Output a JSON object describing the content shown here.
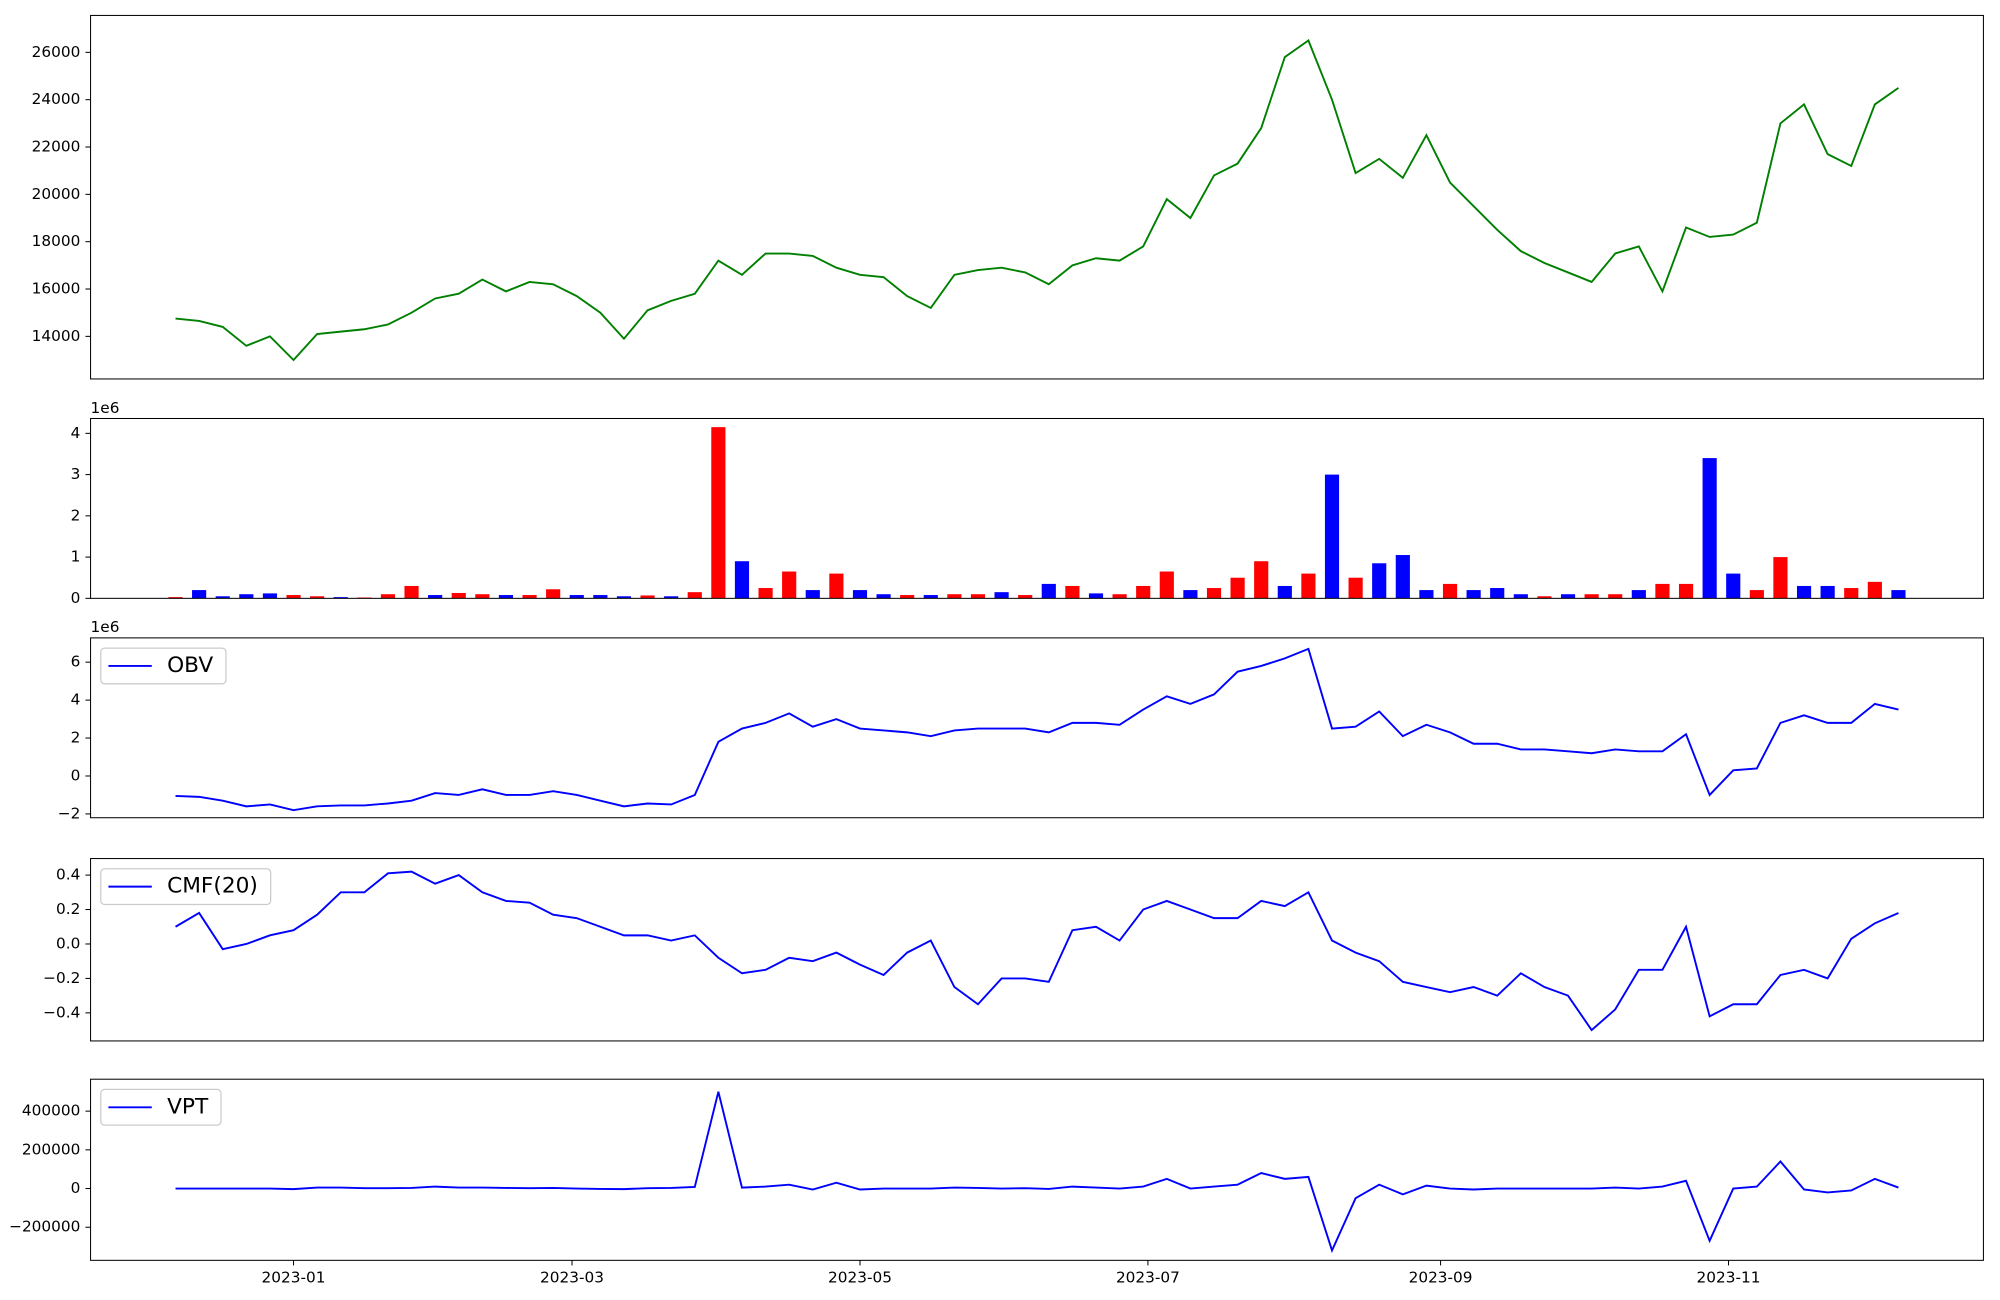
{
  "chart_data": [
    {
      "type": "line",
      "color": "green",
      "x": [
        -25,
        -20,
        -15,
        -10,
        -5,
        0,
        5,
        10,
        15,
        20,
        25,
        30,
        35,
        40,
        45,
        50,
        55,
        60,
        65,
        70,
        75,
        80,
        85,
        90,
        95,
        100,
        105,
        110,
        115,
        120,
        125,
        130,
        135,
        140,
        145,
        150,
        155,
        160,
        165,
        170,
        175,
        180,
        185,
        190,
        195,
        200,
        205,
        210,
        215,
        220,
        225,
        230,
        235,
        240,
        245,
        250,
        255,
        260,
        265,
        270,
        275,
        280,
        285,
        290,
        295,
        300,
        305,
        310,
        315,
        320,
        325,
        330,
        335,
        340
      ],
      "values": [
        14750,
        14650,
        14400,
        13600,
        14000,
        13000,
        14100,
        14200,
        14300,
        14500,
        15000,
        15600,
        15800,
        16400,
        15900,
        16300,
        16200,
        15700,
        15000,
        13900,
        15100,
        15500,
        15800,
        17200,
        16600,
        17500,
        17500,
        17400,
        16900,
        16600,
        16500,
        15700,
        15200,
        16600,
        16800,
        16900,
        16700,
        16200,
        17000,
        17300,
        17200,
        17800,
        19800,
        19000,
        20800,
        21300,
        22800,
        25800,
        26500,
        24000,
        20900,
        21500,
        20700,
        22500,
        20500,
        19500,
        18500,
        17600,
        17100,
        16700,
        16300,
        17500,
        17800,
        15900,
        18600,
        18200,
        18300,
        18800,
        23000,
        23800,
        21700,
        21200,
        23800,
        24500
      ],
      "xlim": [
        -43,
        358
      ],
      "ylim": [
        12200,
        27560
      ],
      "yticks": [
        14000,
        16000,
        18000,
        20000,
        22000,
        24000,
        26000
      ]
    },
    {
      "type": "bar",
      "offset_label": "1e6",
      "x": [
        -25,
        -20,
        -15,
        -10,
        -5,
        0,
        5,
        10,
        15,
        20,
        25,
        30,
        35,
        40,
        45,
        50,
        55,
        60,
        65,
        70,
        75,
        80,
        85,
        90,
        95,
        100,
        105,
        110,
        115,
        120,
        125,
        130,
        135,
        140,
        145,
        150,
        155,
        160,
        165,
        170,
        175,
        180,
        185,
        190,
        195,
        200,
        205,
        210,
        215,
        220,
        225,
        230,
        235,
        240,
        245,
        250,
        255,
        260,
        265,
        270,
        275,
        280,
        285,
        290,
        295,
        300,
        305,
        310,
        315,
        320,
        325,
        330,
        335,
        340
      ],
      "values": [
        30000,
        200000,
        50000,
        100000,
        120000,
        80000,
        50000,
        30000,
        20000,
        100000,
        300000,
        80000,
        130000,
        100000,
        80000,
        80000,
        220000,
        80000,
        80000,
        50000,
        70000,
        50000,
        150000,
        4150000,
        900000,
        250000,
        650000,
        200000,
        600000,
        200000,
        100000,
        80000,
        80000,
        100000,
        100000,
        150000,
        80000,
        350000,
        300000,
        120000,
        100000,
        300000,
        650000,
        200000,
        250000,
        500000,
        900000,
        300000,
        600000,
        3000000,
        500000,
        850000,
        1050000,
        200000,
        350000,
        200000,
        250000,
        100000,
        50000,
        100000,
        100000,
        100000,
        200000,
        350000,
        350000,
        3400000,
        600000,
        200000,
        1000000,
        300000,
        300000,
        250000,
        400000,
        200000
      ],
      "colors": [
        "red",
        "blue",
        "blue",
        "blue",
        "blue",
        "red",
        "red",
        "blue",
        "red",
        "red",
        "red",
        "blue",
        "red",
        "red",
        "blue",
        "red",
        "red",
        "blue",
        "blue",
        "blue",
        "red",
        "blue",
        "red",
        "red",
        "blue",
        "red",
        "red",
        "blue",
        "red",
        "blue",
        "blue",
        "red",
        "blue",
        "red",
        "red",
        "blue",
        "red",
        "blue",
        "red",
        "blue",
        "red",
        "red",
        "red",
        "blue",
        "red",
        "red",
        "red",
        "blue",
        "red",
        "blue",
        "red",
        "blue",
        "blue",
        "blue",
        "red",
        "blue",
        "blue",
        "blue",
        "red",
        "blue",
        "red",
        "red",
        "blue",
        "red",
        "red",
        "blue",
        "blue",
        "red",
        "red",
        "blue",
        "blue",
        "red",
        "red",
        "blue"
      ],
      "xlim": [
        -43,
        358
      ],
      "ylim": [
        0,
        4360000
      ],
      "yticks": [
        0,
        {
          "value": 1000000,
          "label": "1"
        },
        {
          "value": 2000000,
          "label": "2"
        },
        {
          "value": 3000000,
          "label": "3"
        },
        {
          "value": 4000000,
          "label": "4"
        }
      ]
    },
    {
      "type": "line",
      "offset_label": "1e6",
      "legend": "upper left",
      "x": [
        -25,
        -20,
        -15,
        -10,
        -5,
        0,
        5,
        10,
        15,
        20,
        25,
        30,
        35,
        40,
        45,
        50,
        55,
        60,
        65,
        70,
        75,
        80,
        85,
        90,
        95,
        100,
        105,
        110,
        115,
        120,
        125,
        130,
        135,
        140,
        145,
        150,
        155,
        160,
        165,
        170,
        175,
        180,
        185,
        190,
        195,
        200,
        205,
        210,
        215,
        220,
        225,
        230,
        235,
        240,
        245,
        250,
        255,
        260,
        265,
        270,
        275,
        280,
        285,
        290,
        295,
        300,
        305,
        310,
        315,
        320,
        325,
        330,
        335,
        340
      ],
      "series": [
        {
          "name": "OBV",
          "color": "blue",
          "values": [
            -1050000,
            -1100000,
            -1300000,
            -1600000,
            -1500000,
            -1800000,
            -1600000,
            -1550000,
            -1550000,
            -1450000,
            -1300000,
            -900000,
            -1000000,
            -700000,
            -1000000,
            -1000000,
            -800000,
            -1000000,
            -1300000,
            -1600000,
            -1450000,
            -1500000,
            -1000000,
            1800000,
            2500000,
            2800000,
            3300000,
            2600000,
            3000000,
            2500000,
            2400000,
            2300000,
            2100000,
            2400000,
            2500000,
            2500000,
            2500000,
            2300000,
            2800000,
            2800000,
            2700000,
            3500000,
            4200000,
            3800000,
            4300000,
            5500000,
            5800000,
            6200000,
            6700000,
            2500000,
            2600000,
            3400000,
            2100000,
            2700000,
            2300000,
            1700000,
            1700000,
            1400000,
            1400000,
            1300000,
            1200000,
            1400000,
            1300000,
            1300000,
            2200000,
            -1000000,
            300000,
            400000,
            2800000,
            3200000,
            2800000,
            2800000,
            3800000,
            3500000
          ]
        }
      ],
      "xlim": [
        -43,
        358
      ],
      "ylim": [
        -2200000,
        7280000
      ],
      "yticks": [
        {
          "value": -2000000,
          "label": "−2"
        },
        0,
        {
          "value": 2000000,
          "label": "2"
        },
        {
          "value": 4000000,
          "label": "4"
        },
        {
          "value": 6000000,
          "label": "6"
        }
      ]
    },
    {
      "type": "line",
      "legend": "upper left",
      "x": [
        -25,
        -20,
        -15,
        -10,
        -5,
        0,
        5,
        10,
        15,
        20,
        25,
        30,
        35,
        40,
        45,
        50,
        55,
        60,
        65,
        70,
        75,
        80,
        85,
        90,
        95,
        100,
        105,
        110,
        115,
        120,
        125,
        130,
        135,
        140,
        145,
        150,
        155,
        160,
        165,
        170,
        175,
        180,
        185,
        190,
        195,
        200,
        205,
        210,
        215,
        220,
        225,
        230,
        235,
        240,
        245,
        250,
        255,
        260,
        265,
        270,
        275,
        280,
        285,
        290,
        295,
        300,
        305,
        310,
        315,
        320,
        325,
        330,
        335,
        340
      ],
      "series": [
        {
          "name": "CMF(20)",
          "color": "blue",
          "values": [
            0.1,
            0.18,
            -0.03,
            0,
            0.05,
            0.08,
            0.17,
            0.3,
            0.3,
            0.41,
            0.42,
            0.35,
            0.4,
            0.3,
            0.25,
            0.24,
            0.17,
            0.15,
            0.1,
            0.05,
            0.05,
            0.02,
            0.05,
            -0.08,
            -0.17,
            -0.15,
            -0.08,
            -0.1,
            -0.05,
            -0.12,
            -0.18,
            -0.05,
            0.02,
            -0.25,
            -0.35,
            -0.2,
            -0.2,
            -0.22,
            0.08,
            0.1,
            0.02,
            0.2,
            0.25,
            0.2,
            0.15,
            0.15,
            0.25,
            0.22,
            0.3,
            0.02,
            -0.05,
            -0.1,
            -0.22,
            -0.25,
            -0.28,
            -0.25,
            -0.3,
            -0.17,
            -0.25,
            -0.3,
            -0.5,
            -0.38,
            -0.15,
            -0.15,
            0.1,
            -0.42,
            -0.35,
            -0.35,
            -0.18,
            -0.15,
            -0.2,
            0.03,
            0.12,
            0.18
          ]
        }
      ],
      "xlim": [
        -43,
        358
      ],
      "ylim": [
        -0.563,
        0.496
      ],
      "yticks": [
        {
          "value": -0.4,
          "label": "−0.4"
        },
        {
          "value": -0.2,
          "label": "−0.2"
        },
        {
          "value": 0,
          "label": "0.0"
        },
        0.2,
        0.4
      ]
    },
    {
      "type": "line",
      "legend": "upper left",
      "x": [
        -25,
        -20,
        -15,
        -10,
        -5,
        0,
        5,
        10,
        15,
        20,
        25,
        30,
        35,
        40,
        45,
        50,
        55,
        60,
        65,
        70,
        75,
        80,
        85,
        90,
        95,
        100,
        105,
        110,
        115,
        120,
        125,
        130,
        135,
        140,
        145,
        150,
        155,
        160,
        165,
        170,
        175,
        180,
        185,
        190,
        195,
        200,
        205,
        210,
        215,
        220,
        225,
        230,
        235,
        240,
        245,
        250,
        255,
        260,
        265,
        270,
        275,
        280,
        285,
        290,
        295,
        300,
        305,
        310,
        315,
        320,
        325,
        330,
        335,
        340
      ],
      "series": [
        {
          "name": "VPT",
          "color": "blue",
          "values": [
            0,
            0,
            0,
            0,
            0,
            -3000,
            5000,
            5000,
            2000,
            2000,
            3000,
            10000,
            5000,
            5000,
            3000,
            2000,
            3000,
            0,
            -2000,
            -3000,
            2000,
            3000,
            8000,
            500000,
            5000,
            10000,
            20000,
            -5000,
            30000,
            -5000,
            0,
            0,
            0,
            5000,
            3000,
            0,
            2000,
            -2000,
            10000,
            5000,
            0,
            10000,
            50000,
            0,
            10000,
            20000,
            80000,
            50000,
            60000,
            -320000,
            -50000,
            20000,
            -30000,
            15000,
            0,
            -5000,
            0,
            0,
            0,
            0,
            0,
            5000,
            0,
            10000,
            40000,
            -270000,
            0,
            10000,
            140000,
            -5000,
            -20000,
            -10000,
            50000,
            5000
          ]
        }
      ],
      "xlim": [
        -43,
        358
      ],
      "ylim": [
        -371000,
        565000
      ],
      "yticks": [
        {
          "value": -200000,
          "label": "−200000"
        },
        0,
        200000,
        400000
      ],
      "xticks": [
        {
          "value": 0,
          "label": "2023-01"
        },
        {
          "value": 59,
          "label": "2023-03"
        },
        {
          "value": 120,
          "label": "2023-05"
        },
        {
          "value": 181,
          "label": "2023-07"
        },
        {
          "value": 243,
          "label": "2023-09"
        },
        {
          "value": 304,
          "label": "2023-11"
        }
      ]
    }
  ]
}
